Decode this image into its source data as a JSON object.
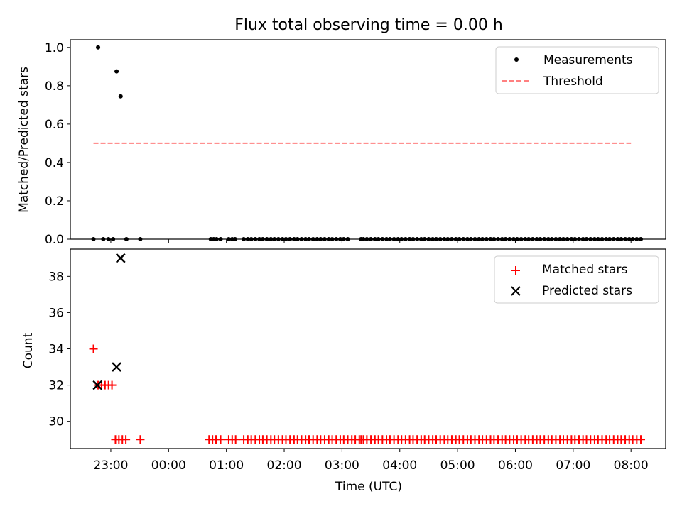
{
  "figure": {
    "title": "Flux total observing time = 0.00 h"
  },
  "chart_data": [
    {
      "type": "scatter",
      "panel": "top",
      "ylabel": "Matched/Predicted stars",
      "ylim": [
        0,
        1.04
      ],
      "xlim_hours": [
        -1.7,
        8.6
      ],
      "yticks": [
        "0.0",
        "0.2",
        "0.4",
        "0.6",
        "0.8",
        "1.0"
      ],
      "grid": false,
      "legend_position": "top-right",
      "legend": [
        "Measurements",
        "Threshold"
      ],
      "threshold": {
        "name": "Threshold",
        "value": 0.5,
        "x": [
          -1.3,
          8.0
        ],
        "color": "#ff8080"
      },
      "series": [
        {
          "name": "Measurements",
          "color": "#000000",
          "points": [
            [
              -1.3,
              0
            ],
            [
              -1.22,
              1.0
            ],
            [
              -1.13,
              0
            ],
            [
              -1.04,
              0
            ],
            [
              -0.96,
              0
            ],
            [
              -0.9,
              0.875
            ],
            [
              -0.83,
              0.745
            ],
            [
              -0.73,
              0
            ],
            [
              -0.49,
              0
            ],
            [
              0.73,
              0
            ],
            [
              0.78,
              0
            ],
            [
              0.83,
              0
            ],
            [
              0.9,
              0
            ],
            [
              1.04,
              0
            ],
            [
              1.1,
              0
            ],
            [
              1.15,
              0
            ],
            [
              1.3,
              0
            ],
            [
              1.37,
              0
            ],
            [
              1.43,
              0
            ],
            [
              1.5,
              0
            ],
            [
              1.57,
              0
            ],
            [
              1.63,
              0
            ],
            [
              1.7,
              0
            ],
            [
              1.77,
              0
            ],
            [
              1.83,
              0
            ],
            [
              1.9,
              0
            ],
            [
              1.97,
              0
            ],
            [
              2.03,
              0
            ],
            [
              2.1,
              0
            ],
            [
              2.17,
              0
            ],
            [
              2.23,
              0
            ],
            [
              2.3,
              0
            ],
            [
              2.37,
              0
            ],
            [
              2.43,
              0
            ],
            [
              2.5,
              0
            ],
            [
              2.57,
              0
            ],
            [
              2.63,
              0
            ],
            [
              2.7,
              0
            ],
            [
              2.77,
              0
            ],
            [
              2.83,
              0
            ],
            [
              2.9,
              0
            ],
            [
              2.97,
              0
            ],
            [
              3.03,
              0
            ],
            [
              3.1,
              0
            ],
            [
              3.33,
              0
            ],
            [
              3.37,
              0
            ],
            [
              3.43,
              0
            ],
            [
              3.5,
              0
            ],
            [
              3.57,
              0
            ],
            [
              3.63,
              0
            ],
            [
              3.7,
              0
            ],
            [
              3.77,
              0
            ],
            [
              3.83,
              0
            ],
            [
              3.9,
              0
            ],
            [
              3.97,
              0
            ],
            [
              4.03,
              0
            ],
            [
              4.1,
              0
            ],
            [
              4.17,
              0
            ],
            [
              4.23,
              0
            ],
            [
              4.3,
              0
            ],
            [
              4.37,
              0
            ],
            [
              4.43,
              0
            ],
            [
              4.5,
              0
            ],
            [
              4.57,
              0
            ],
            [
              4.63,
              0
            ],
            [
              4.7,
              0
            ],
            [
              4.77,
              0
            ],
            [
              4.83,
              0
            ],
            [
              4.9,
              0
            ],
            [
              4.97,
              0
            ],
            [
              5.03,
              0
            ],
            [
              5.1,
              0
            ],
            [
              5.17,
              0
            ],
            [
              5.23,
              0
            ],
            [
              5.3,
              0
            ],
            [
              5.37,
              0
            ],
            [
              5.43,
              0
            ],
            [
              5.5,
              0
            ],
            [
              5.57,
              0
            ],
            [
              5.63,
              0
            ],
            [
              5.7,
              0
            ],
            [
              5.77,
              0
            ],
            [
              5.83,
              0
            ],
            [
              5.9,
              0
            ],
            [
              5.97,
              0
            ],
            [
              6.03,
              0
            ],
            [
              6.1,
              0
            ],
            [
              6.17,
              0
            ],
            [
              6.23,
              0
            ],
            [
              6.3,
              0
            ],
            [
              6.37,
              0
            ],
            [
              6.43,
              0
            ],
            [
              6.5,
              0
            ],
            [
              6.57,
              0
            ],
            [
              6.63,
              0
            ],
            [
              6.7,
              0
            ],
            [
              6.77,
              0
            ],
            [
              6.83,
              0
            ],
            [
              6.9,
              0
            ],
            [
              6.97,
              0
            ],
            [
              7.03,
              0
            ],
            [
              7.1,
              0
            ],
            [
              7.17,
              0
            ],
            [
              7.23,
              0
            ],
            [
              7.3,
              0
            ],
            [
              7.37,
              0
            ],
            [
              7.43,
              0
            ],
            [
              7.5,
              0
            ],
            [
              7.57,
              0
            ],
            [
              7.63,
              0
            ],
            [
              7.7,
              0
            ],
            [
              7.77,
              0
            ],
            [
              7.83,
              0
            ],
            [
              7.9,
              0
            ],
            [
              7.97,
              0
            ],
            [
              8.03,
              0
            ],
            [
              8.1,
              0
            ],
            [
              8.17,
              0
            ]
          ]
        }
      ]
    },
    {
      "type": "scatter",
      "panel": "bottom",
      "xlabel": "Time (UTC)",
      "ylabel": "Count",
      "ylim": [
        28.5,
        39.5
      ],
      "xlim_hours": [
        -1.7,
        8.6
      ],
      "xticks": [
        {
          "hour": -1,
          "label": "23:00"
        },
        {
          "hour": 0,
          "label": "00:00"
        },
        {
          "hour": 1,
          "label": "01:00"
        },
        {
          "hour": 2,
          "label": "02:00"
        },
        {
          "hour": 3,
          "label": "03:00"
        },
        {
          "hour": 4,
          "label": "04:00"
        },
        {
          "hour": 5,
          "label": "05:00"
        },
        {
          "hour": 6,
          "label": "06:00"
        },
        {
          "hour": 7,
          "label": "07:00"
        },
        {
          "hour": 8,
          "label": "08:00"
        }
      ],
      "yticks": [
        "30",
        "32",
        "34",
        "36",
        "38"
      ],
      "grid": false,
      "legend_position": "top-right",
      "legend": [
        "Matched stars",
        "Predicted stars"
      ],
      "series": [
        {
          "name": "Matched stars",
          "marker": "plus",
          "color": "#ff0000",
          "points": [
            [
              -1.3,
              34
            ],
            [
              -1.22,
              32
            ],
            [
              -1.16,
              32
            ],
            [
              -1.1,
              32
            ],
            [
              -1.04,
              32
            ],
            [
              -0.98,
              32
            ],
            [
              -0.92,
              29
            ],
            [
              -0.86,
              29
            ],
            [
              -0.8,
              29
            ],
            [
              -0.74,
              29
            ],
            [
              -0.49,
              29
            ],
            [
              0.7,
              29
            ],
            [
              0.76,
              29
            ],
            [
              0.82,
              29
            ],
            [
              0.9,
              29
            ],
            [
              1.04,
              29
            ],
            [
              1.1,
              29
            ],
            [
              1.16,
              29
            ],
            [
              1.3,
              29
            ],
            [
              1.37,
              29
            ],
            [
              1.43,
              29
            ],
            [
              1.5,
              29
            ],
            [
              1.57,
              29
            ],
            [
              1.63,
              29
            ],
            [
              1.7,
              29
            ],
            [
              1.77,
              29
            ],
            [
              1.83,
              29
            ],
            [
              1.9,
              29
            ],
            [
              1.97,
              29
            ],
            [
              2.03,
              29
            ],
            [
              2.1,
              29
            ],
            [
              2.17,
              29
            ],
            [
              2.23,
              29
            ],
            [
              2.3,
              29
            ],
            [
              2.37,
              29
            ],
            [
              2.43,
              29
            ],
            [
              2.5,
              29
            ],
            [
              2.57,
              29
            ],
            [
              2.63,
              29
            ],
            [
              2.7,
              29
            ],
            [
              2.77,
              29
            ],
            [
              2.83,
              29
            ],
            [
              2.9,
              29
            ],
            [
              2.97,
              29
            ],
            [
              3.03,
              29
            ],
            [
              3.1,
              29
            ],
            [
              3.17,
              29
            ],
            [
              3.23,
              29
            ],
            [
              3.3,
              29
            ],
            [
              3.33,
              29
            ],
            [
              3.37,
              29
            ],
            [
              3.43,
              29
            ],
            [
              3.5,
              29
            ],
            [
              3.57,
              29
            ],
            [
              3.63,
              29
            ],
            [
              3.7,
              29
            ],
            [
              3.77,
              29
            ],
            [
              3.83,
              29
            ],
            [
              3.9,
              29
            ],
            [
              3.97,
              29
            ],
            [
              4.03,
              29
            ],
            [
              4.1,
              29
            ],
            [
              4.17,
              29
            ],
            [
              4.23,
              29
            ],
            [
              4.3,
              29
            ],
            [
              4.37,
              29
            ],
            [
              4.43,
              29
            ],
            [
              4.5,
              29
            ],
            [
              4.57,
              29
            ],
            [
              4.63,
              29
            ],
            [
              4.7,
              29
            ],
            [
              4.77,
              29
            ],
            [
              4.83,
              29
            ],
            [
              4.9,
              29
            ],
            [
              4.97,
              29
            ],
            [
              5.03,
              29
            ],
            [
              5.1,
              29
            ],
            [
              5.17,
              29
            ],
            [
              5.23,
              29
            ],
            [
              5.3,
              29
            ],
            [
              5.37,
              29
            ],
            [
              5.43,
              29
            ],
            [
              5.5,
              29
            ],
            [
              5.57,
              29
            ],
            [
              5.63,
              29
            ],
            [
              5.7,
              29
            ],
            [
              5.77,
              29
            ],
            [
              5.83,
              29
            ],
            [
              5.9,
              29
            ],
            [
              5.97,
              29
            ],
            [
              6.03,
              29
            ],
            [
              6.1,
              29
            ],
            [
              6.17,
              29
            ],
            [
              6.23,
              29
            ],
            [
              6.3,
              29
            ],
            [
              6.37,
              29
            ],
            [
              6.43,
              29
            ],
            [
              6.5,
              29
            ],
            [
              6.57,
              29
            ],
            [
              6.63,
              29
            ],
            [
              6.7,
              29
            ],
            [
              6.77,
              29
            ],
            [
              6.83,
              29
            ],
            [
              6.9,
              29
            ],
            [
              6.97,
              29
            ],
            [
              7.03,
              29
            ],
            [
              7.1,
              29
            ],
            [
              7.17,
              29
            ],
            [
              7.23,
              29
            ],
            [
              7.3,
              29
            ],
            [
              7.37,
              29
            ],
            [
              7.43,
              29
            ],
            [
              7.5,
              29
            ],
            [
              7.57,
              29
            ],
            [
              7.63,
              29
            ],
            [
              7.7,
              29
            ],
            [
              7.77,
              29
            ],
            [
              7.83,
              29
            ],
            [
              7.9,
              29
            ],
            [
              7.97,
              29
            ],
            [
              8.03,
              29
            ],
            [
              8.1,
              29
            ],
            [
              8.17,
              29
            ]
          ]
        },
        {
          "name": "Predicted stars",
          "marker": "x",
          "color": "#000000",
          "points": [
            [
              -1.23,
              32
            ],
            [
              -0.9,
              33
            ],
            [
              -0.83,
              39
            ]
          ]
        }
      ]
    }
  ]
}
